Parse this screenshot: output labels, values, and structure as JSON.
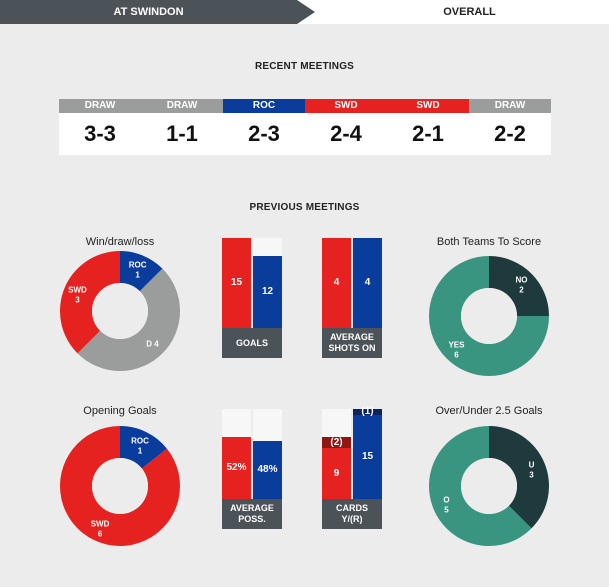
{
  "tabs": {
    "active": "AT SWINDON",
    "inactive": "OVERALL"
  },
  "recent": {
    "title": "RECENT MEETINGS",
    "matches": [
      {
        "label": "DRAW",
        "score": "3-3",
        "color": "#9a9d9c"
      },
      {
        "label": "DRAW",
        "score": "1-1",
        "color": "#9a9d9c"
      },
      {
        "label": "ROC",
        "score": "2-3",
        "color": "#0a3c9c"
      },
      {
        "label": "SWD",
        "score": "2-4",
        "color": "#e5221f"
      },
      {
        "label": "SWD",
        "score": "2-1",
        "color": "#e5221f"
      },
      {
        "label": "DRAW",
        "score": "2-2",
        "color": "#9a9d9c"
      }
    ]
  },
  "previous": {
    "title": "PREVIOUS MEETINGS"
  },
  "chart_data": [
    {
      "type": "pie",
      "title": "Win/draw/loss",
      "slices": [
        {
          "name": "ROC",
          "value": 1,
          "color": "#0a3c9c"
        },
        {
          "name": "D",
          "value": 4,
          "color": "#9a9d9c"
        },
        {
          "name": "SWD",
          "value": 3,
          "color": "#e5221f"
        }
      ]
    },
    {
      "type": "bar",
      "title": "GOALS",
      "values": [
        15,
        12
      ],
      "colors": [
        "#e5221f",
        "#0a3c9c"
      ],
      "max": 15
    },
    {
      "type": "bar",
      "title": "AVERAGE SHOTS ON",
      "values": [
        4,
        4
      ],
      "colors": [
        "#e5221f",
        "#0a3c9c"
      ],
      "max": 4
    },
    {
      "type": "pie",
      "title": "Both Teams To Score",
      "slices": [
        {
          "name": "NO",
          "value": 2,
          "color": "#1e3a3c"
        },
        {
          "name": "YES",
          "value": 6,
          "color": "#3a9580"
        }
      ]
    },
    {
      "type": "pie",
      "title": "Opening Goals",
      "slices": [
        {
          "name": "ROC",
          "value": 1,
          "color": "#0a3c9c"
        },
        {
          "name": "SWD",
          "value": 6,
          "color": "#e5221f"
        }
      ]
    },
    {
      "type": "bar",
      "title": "AVERAGE POSS.",
      "values": [
        52,
        48
      ],
      "labels": [
        "52%",
        "48%"
      ],
      "colors": [
        "#e5221f",
        "#0a3c9c"
      ],
      "max": 75
    },
    {
      "type": "bar",
      "title": "CARDS Y/(R)",
      "yellow": [
        9,
        15
      ],
      "red": [
        2,
        1
      ],
      "labels_yellow": [
        "9",
        "15"
      ],
      "labels_red": [
        "(2)",
        "(1)"
      ],
      "colors": [
        "#e5221f",
        "#0a3c9c"
      ],
      "red_colors": [
        "#8e1712",
        "#0a2460"
      ]
    },
    {
      "type": "pie",
      "title": "Over/Under 2.5 Goals",
      "slices": [
        {
          "name": "U",
          "value": 3,
          "color": "#1e3a3c"
        },
        {
          "name": "O",
          "value": 5,
          "color": "#3a9580"
        }
      ]
    }
  ]
}
